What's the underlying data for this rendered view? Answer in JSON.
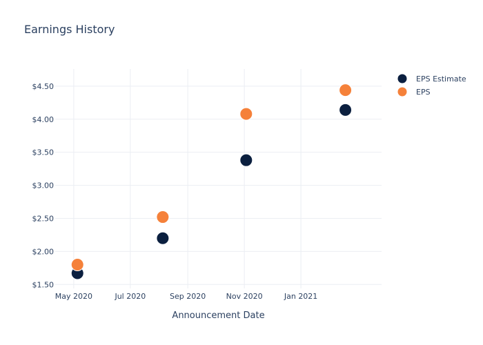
{
  "chart_data": {
    "type": "scatter",
    "title": "Earnings History",
    "xlabel": "Announcement Date",
    "ylabel": "",
    "x_ticks": [
      "May 2020",
      "Jul 2020",
      "Sep 2020",
      "Nov 2020",
      "Jan 2021"
    ],
    "y_ticks": [
      "$1.50",
      "$2.00",
      "$2.50",
      "$3.00",
      "$3.50",
      "$4.00",
      "$4.50"
    ],
    "xlim": [
      "2020-04-11",
      "2021-03-29"
    ],
    "ylim": [
      1.44,
      4.76
    ],
    "grid": true,
    "legend_position": "top-right",
    "series": [
      {
        "name": "EPS Estimate",
        "color": "#0b1f3f",
        "points": [
          {
            "x": "2020-05-05",
            "y": 1.67
          },
          {
            "x": "2020-08-05",
            "y": 2.2
          },
          {
            "x": "2020-11-03",
            "y": 3.38
          },
          {
            "x": "2021-02-18",
            "y": 4.14
          }
        ]
      },
      {
        "name": "EPS",
        "color": "#f5813a",
        "points": [
          {
            "x": "2020-05-05",
            "y": 1.8
          },
          {
            "x": "2020-08-05",
            "y": 2.52
          },
          {
            "x": "2020-11-03",
            "y": 4.08
          },
          {
            "x": "2021-02-18",
            "y": 4.44
          }
        ]
      }
    ]
  }
}
